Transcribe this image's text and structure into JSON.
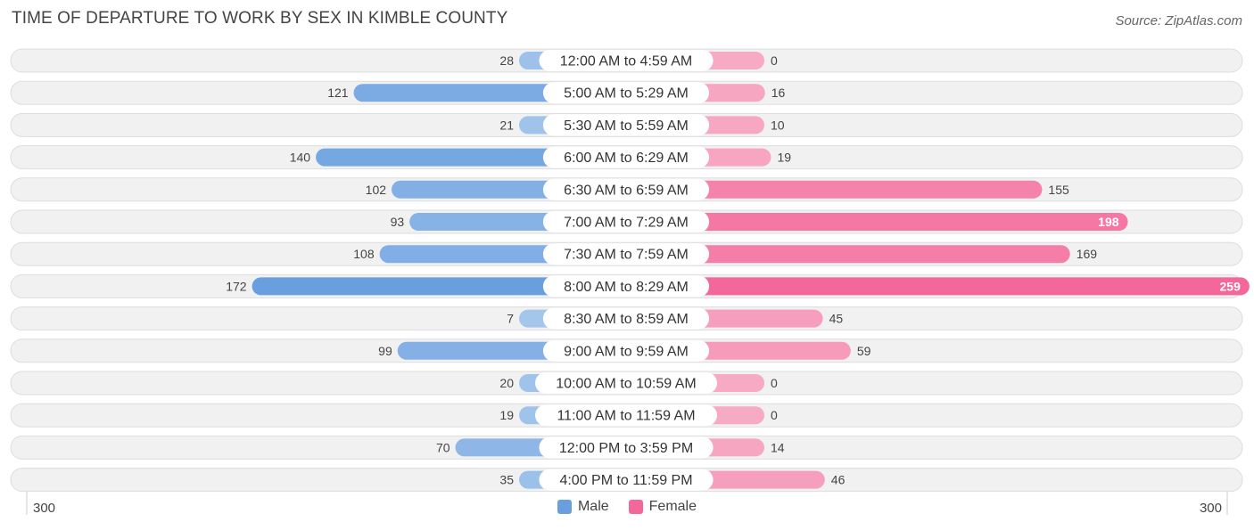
{
  "chart_data": {
    "type": "bar",
    "orientation": "horizontal-diverging",
    "title": "TIME OF DEPARTURE TO WORK BY SEX IN KIMBLE COUNTY",
    "source": "Source: ZipAtlas.com",
    "categories": [
      "12:00 AM to 4:59 AM",
      "5:00 AM to 5:29 AM",
      "5:30 AM to 5:59 AM",
      "6:00 AM to 6:29 AM",
      "6:30 AM to 6:59 AM",
      "7:00 AM to 7:29 AM",
      "7:30 AM to 7:59 AM",
      "8:00 AM to 8:29 AM",
      "8:30 AM to 8:59 AM",
      "9:00 AM to 9:59 AM",
      "10:00 AM to 10:59 AM",
      "11:00 AM to 11:59 AM",
      "12:00 PM to 3:59 PM",
      "4:00 PM to 11:59 PM"
    ],
    "series": [
      {
        "name": "Male",
        "values": [
          28,
          121,
          21,
          140,
          102,
          93,
          108,
          172,
          7,
          99,
          20,
          19,
          70,
          35
        ]
      },
      {
        "name": "Female",
        "values": [
          0,
          16,
          10,
          19,
          155,
          198,
          169,
          259,
          45,
          59,
          0,
          0,
          14,
          46
        ]
      }
    ],
    "axis": {
      "min_label": "300",
      "max_label": "300",
      "range": [
        0,
        300
      ]
    },
    "legend": {
      "position": "bottom-center",
      "male_label": "Male",
      "female_label": "Female"
    },
    "colors": {
      "male_light": "#a7c8ec",
      "male_dark": "#6a9fdf",
      "female_light": "#f7aac4",
      "female_dark": "#f4679a",
      "track": "#f1f1f1",
      "track_border": "#dddddd"
    }
  }
}
